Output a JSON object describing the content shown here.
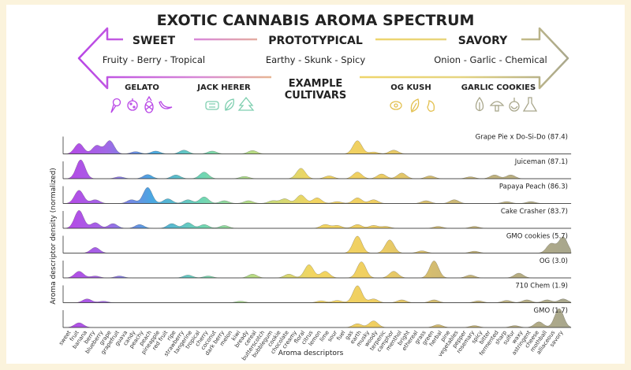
{
  "title": "EXOTIC CANNABIS AROMA SPECTRUM",
  "spectrum": [
    {
      "heading": "SWEET",
      "subtitle": "Fruity - Berry - Tropical"
    },
    {
      "heading": "PROTOTYPICAL",
      "subtitle": "Earthy - Skunk - Spicy"
    },
    {
      "heading": "SAVORY",
      "subtitle": "Onion - Garlic - Chemical"
    }
  ],
  "examples_label": "EXAMPLE CULTIVARS",
  "cultivars": [
    {
      "name": "GELATO",
      "icons": [
        "ice-cream-icon",
        "berry-icon",
        "pineapple-icon",
        "banana-icon"
      ]
    },
    {
      "name": "JACK HERER",
      "icons": [
        "wood-icon",
        "leaf-icon",
        "pine-icon"
      ]
    },
    {
      "name": "OG KUSH",
      "icons": [
        "lemon-icon",
        "leaf-icon",
        "pepper-icon"
      ]
    },
    {
      "name": "GARLIC COOKIES",
      "icons": [
        "garlic-icon",
        "mushroom-icon",
        "onion-icon",
        "flask-icon"
      ]
    }
  ],
  "colors": {
    "sweet": "#b845e6",
    "proto": "#f2d561",
    "savory": "#a9a78c",
    "arrow_border": "#888888"
  },
  "chart_data": {
    "type": "area",
    "ylabel": "Aroma descriptor density (normalized)",
    "xlabel": "Aroma descriptors",
    "x": [
      "sweet",
      "fruit",
      "banana",
      "berry",
      "blueberry",
      "grape",
      "grapefruit",
      "guava",
      "candy",
      "peachy",
      "peach",
      "pineapple",
      "red fruit",
      "ripe",
      "strawberry",
      "tangerine",
      "tropical",
      "cherry",
      "coconut",
      "dark berry",
      "melon",
      "kiwi",
      "bready",
      "cereal",
      "butterscotch",
      "bubblegum",
      "cookie",
      "chocolate",
      "creamy",
      "floral",
      "citrus",
      "lemon",
      "lime",
      "sour",
      "fuel",
      "gas",
      "earth",
      "musky",
      "woody",
      "terpenic",
      "camphor",
      "menthol",
      "bright",
      "ethereal",
      "grass",
      "green",
      "herbal",
      "pine",
      "vegetables",
      "pepper",
      "rosemary",
      "spicy",
      "bitter",
      "fermented",
      "sharp",
      "sulfur",
      "waxy",
      "astringent",
      "cheese",
      "mothball",
      "alliaceous",
      "savory"
    ],
    "series": [
      {
        "name": "Grape Pie x Do-Si-Do (87.4)",
        "peaks": [
          [
            1,
            0.55
          ],
          [
            3.2,
            0.45
          ],
          [
            4.8,
            0.7
          ],
          [
            8,
            0.12
          ],
          [
            10.5,
            0.15
          ],
          [
            14,
            0.2
          ],
          [
            17.5,
            0.15
          ],
          [
            22.5,
            0.18
          ],
          [
            35.5,
            0.7
          ],
          [
            37.5,
            0.1
          ],
          [
            40,
            0.2
          ]
        ]
      },
      {
        "name": "Juiceman (87.1)",
        "peaks": [
          [
            1.2,
            1.0
          ],
          [
            6,
            0.1
          ],
          [
            9.5,
            0.22
          ],
          [
            13,
            0.2
          ],
          [
            16.5,
            0.35
          ],
          [
            21.5,
            0.12
          ],
          [
            28.5,
            0.55
          ],
          [
            32,
            0.15
          ],
          [
            35.5,
            0.35
          ],
          [
            38.5,
            0.25
          ],
          [
            41,
            0.3
          ],
          [
            44.5,
            0.15
          ],
          [
            49.5,
            0.1
          ],
          [
            52.5,
            0.2
          ],
          [
            54.5,
            0.2
          ]
        ]
      },
      {
        "name": "Papaya Peach (86.3)",
        "peaks": [
          [
            1,
            0.7
          ],
          [
            3,
            0.2
          ],
          [
            7.5,
            0.2
          ],
          [
            9.5,
            0.85
          ],
          [
            12,
            0.25
          ],
          [
            14.5,
            0.2
          ],
          [
            16.5,
            0.35
          ],
          [
            19,
            0.15
          ],
          [
            22,
            0.15
          ],
          [
            25,
            0.15
          ],
          [
            26.5,
            0.25
          ],
          [
            28.5,
            0.45
          ],
          [
            30.5,
            0.3
          ],
          [
            33,
            0.1
          ],
          [
            35.5,
            0.3
          ],
          [
            37.5,
            0.2
          ],
          [
            44,
            0.15
          ],
          [
            47.5,
            0.2
          ],
          [
            54,
            0.1
          ],
          [
            57,
            0.1
          ]
        ]
      },
      {
        "name": "Cake Crasher (83.7)",
        "peaks": [
          [
            1,
            0.95
          ],
          [
            3,
            0.3
          ],
          [
            5.2,
            0.25
          ],
          [
            8.5,
            0.2
          ],
          [
            12.5,
            0.25
          ],
          [
            14.5,
            0.3
          ],
          [
            16.5,
            0.2
          ],
          [
            19,
            0.15
          ],
          [
            31.5,
            0.2
          ],
          [
            33,
            0.15
          ],
          [
            35.5,
            0.2
          ],
          [
            37.5,
            0.15
          ],
          [
            39,
            0.1
          ],
          [
            45.5,
            0.1
          ],
          [
            50,
            0.1
          ]
        ]
      },
      {
        "name": "GMO cookies (5.7)",
        "peaks": [
          [
            3,
            0.3
          ],
          [
            35.5,
            0.9
          ],
          [
            39.5,
            0.7
          ],
          [
            43.5,
            0.12
          ],
          [
            50,
            0.1
          ],
          [
            59.5,
            0.5
          ],
          [
            61,
            0.85
          ]
        ]
      },
      {
        "name": "OG (3.0)",
        "peaks": [
          [
            1,
            0.35
          ],
          [
            3,
            0.1
          ],
          [
            6,
            0.1
          ],
          [
            14.5,
            0.15
          ],
          [
            17,
            0.1
          ],
          [
            22.5,
            0.2
          ],
          [
            27,
            0.2
          ],
          [
            29.5,
            0.7
          ],
          [
            31.5,
            0.35
          ],
          [
            36,
            0.85
          ],
          [
            40,
            0.35
          ],
          [
            45,
            0.9
          ],
          [
            49.5,
            0.15
          ],
          [
            55.5,
            0.25
          ]
        ]
      },
      {
        "name": "710 Chem (1.9)",
        "peaks": [
          [
            2,
            0.2
          ],
          [
            4,
            0.08
          ],
          [
            21,
            0.08
          ],
          [
            31,
            0.1
          ],
          [
            33,
            0.12
          ],
          [
            35.5,
            0.9
          ],
          [
            37.5,
            0.2
          ],
          [
            41,
            0.15
          ],
          [
            45,
            0.15
          ],
          [
            50.5,
            0.1
          ],
          [
            54,
            0.12
          ],
          [
            56.5,
            0.15
          ],
          [
            59,
            0.15
          ],
          [
            61,
            0.2
          ]
        ]
      },
      {
        "name": "GMO (1.7)",
        "peaks": [
          [
            1,
            0.25
          ],
          [
            35.5,
            0.2
          ],
          [
            37.5,
            0.35
          ],
          [
            45.5,
            0.15
          ],
          [
            50,
            0.1
          ],
          [
            55,
            0.1
          ],
          [
            58,
            0.3
          ],
          [
            60.5,
            1.0
          ]
        ]
      }
    ],
    "grid": false,
    "legend": "none"
  }
}
